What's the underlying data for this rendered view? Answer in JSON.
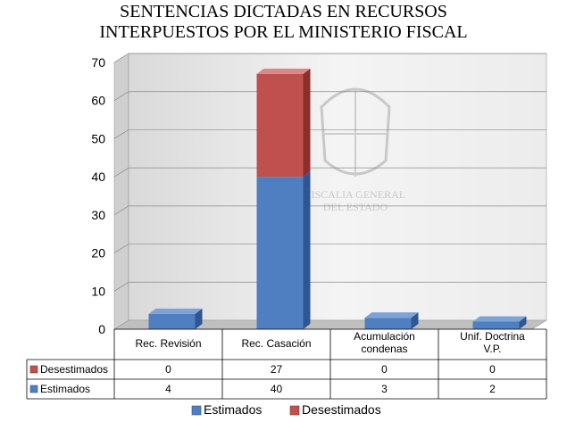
{
  "chart_data": {
    "type": "bar",
    "stacked": true,
    "three_d": true,
    "title": "SENTENCIAS DICTADAS EN RECURSOS\nINTERPUESTOS POR EL MINISTERIO FISCAL",
    "categories": [
      "Rec. Revisión",
      "Rec. Casación",
      "Acumulación condenas",
      "Unif. Doctrina V.P."
    ],
    "category_lines": [
      [
        "Rec. Revisión"
      ],
      [
        "Rec. Casación"
      ],
      [
        "Acumulación",
        "condenas"
      ],
      [
        "Unif. Doctrina",
        "V.P."
      ]
    ],
    "series": [
      {
        "name": "Estimados",
        "values": [
          4,
          40,
          3,
          2
        ],
        "color": "#4f7fc0",
        "side_color": "#2f5690",
        "top_color": "#7ea3d6"
      },
      {
        "name": "Desestimados",
        "values": [
          0,
          27,
          0,
          0
        ],
        "color": "#c0504d",
        "side_color": "#8b2f2c",
        "top_color": "#d98886"
      }
    ],
    "ylim": [
      0,
      70
    ],
    "yticks": [
      0,
      10,
      20,
      30,
      40,
      50,
      60,
      70
    ],
    "grid": true,
    "legend_position": "bottom",
    "data_table": true,
    "watermark_text": [
      "FISCALIA GENERAL",
      "DEL ESTADO"
    ]
  }
}
